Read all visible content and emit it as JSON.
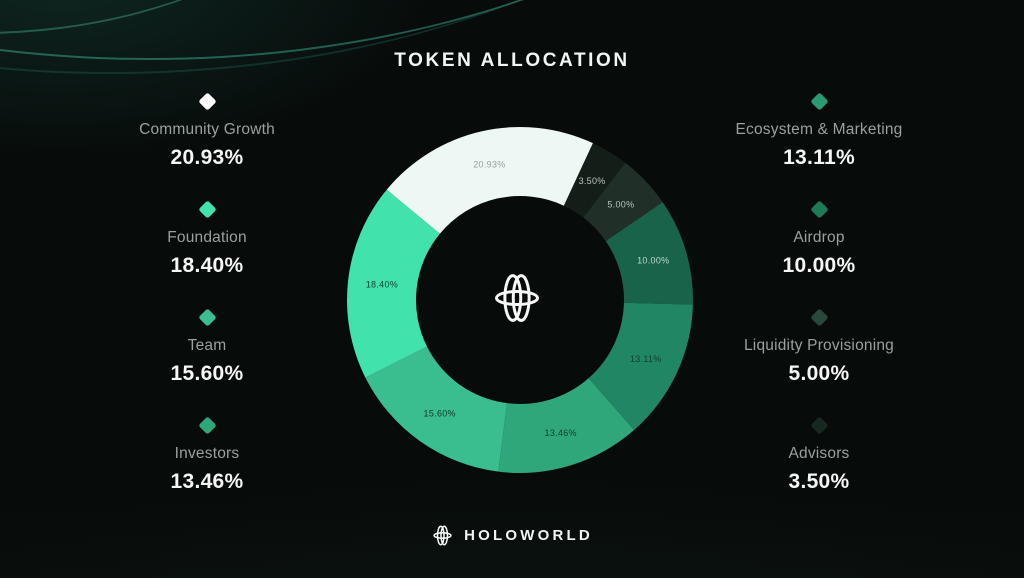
{
  "title": "TOKEN ALLOCATION",
  "brand": {
    "name": "HOLOWORLD"
  },
  "chart_data": {
    "type": "pie",
    "subtype": "donut",
    "title": "TOKEN ALLOCATION",
    "start_angle_deg": -50.4,
    "inner_radius_ratio": 0.6,
    "legend_position": "left-right-columns",
    "segments": [
      {
        "label": "Community Growth",
        "value": 20.93,
        "display": "20.93%",
        "color": "#edf7f3",
        "label_color": "#97a19e"
      },
      {
        "label": "Advisors",
        "value": 3.5,
        "display": "3.50%",
        "color": "#141e19",
        "label_color": "#b9c3bf"
      },
      {
        "label": "Liquidity Provisioning",
        "value": 5.0,
        "display": "5.00%",
        "color": "#203029",
        "label_color": "#b9c3bf"
      },
      {
        "label": "Airdrop",
        "value": 10.0,
        "display": "10.00%",
        "color": "#186349",
        "label_color": "#bdd9cc"
      },
      {
        "label": "Ecosystem & Marketing",
        "value": 13.11,
        "display": "13.11%",
        "color": "#218663",
        "label_color": "#11402f"
      },
      {
        "label": "Investors",
        "value": 13.46,
        "display": "13.46%",
        "color": "#30a77a",
        "label_color": "#11402f"
      },
      {
        "label": "Team",
        "value": 15.6,
        "display": "15.60%",
        "color": "#3abd8f",
        "label_color": "#0f3b2b"
      },
      {
        "label": "Foundation",
        "value": 18.4,
        "display": "18.40%",
        "color": "#42e2ac",
        "label_color": "#0e4630"
      }
    ]
  },
  "legend": {
    "left": [
      {
        "label": "Community Growth",
        "pct": "20.93%",
        "diamond": "#ffffff"
      },
      {
        "label": "Foundation",
        "pct": "18.40%",
        "diamond": "#42e2ac"
      },
      {
        "label": "Team",
        "pct": "15.60%",
        "diamond": "#3abd8f"
      },
      {
        "label": "Investors",
        "pct": "13.46%",
        "diamond": "#30a77a"
      }
    ],
    "right": [
      {
        "label": "Ecosystem & Marketing",
        "pct": "13.11%",
        "diamond": "#2b9a70"
      },
      {
        "label": "Airdrop",
        "pct": "10.00%",
        "diamond": "#1f7a58"
      },
      {
        "label": "Liquidity Provisioning",
        "pct": "5.00%",
        "diamond": "#2a473c"
      },
      {
        "label": "Advisors",
        "pct": "3.50%",
        "diamond": "#16281f"
      }
    ]
  },
  "icons": {
    "center_logo": "holoworld-orbit-icon",
    "footer_logo": "holoworld-orbit-icon"
  }
}
